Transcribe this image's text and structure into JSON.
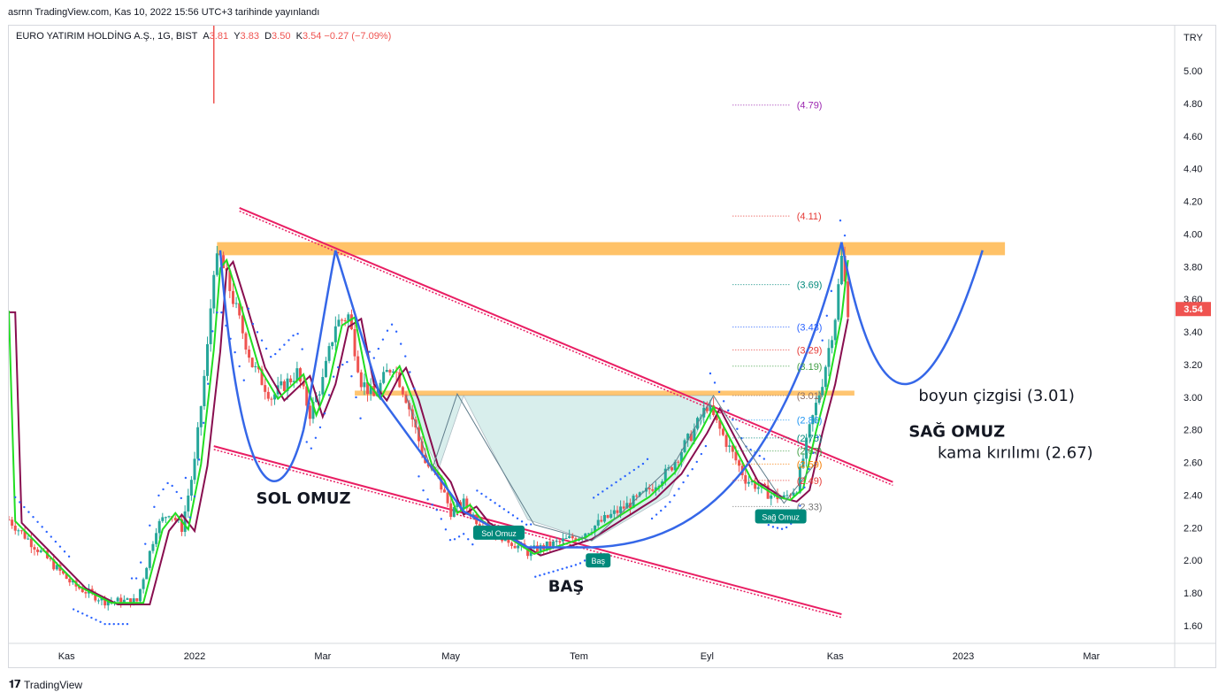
{
  "publish_line": "asrnn TradingView.com, Kas 10, 2022 15:56 UTC+3 tarihinde yayınlandı",
  "symbol": "EURO YATIRIM HOLDİNG A.Ş., 1G, BIST",
  "ohlc": {
    "open_label": "A",
    "open": "3.81",
    "high_label": "Y",
    "high": "3.83",
    "low_label": "D",
    "low": "3.50",
    "close_label": "K",
    "close": "3.54",
    "change": "−0.27 (−7.09%)"
  },
  "currency": "TRY",
  "last_price": "3.54",
  "brand": "TradingView",
  "colors": {
    "up": "#26a69a",
    "down": "#ef5350",
    "pattern_curve": "#3567e8",
    "channel": "#e91e63",
    "zone": "#ffb74d",
    "ema_fast": "#22dd22",
    "ema_slow": "#880e4f",
    "sar": "#2962ff",
    "fill": "#b2dfdb"
  },
  "chart_data": {
    "type": "line",
    "title": "",
    "xlabel": "",
    "ylabel": "",
    "ylim": [
      1.5,
      5.2
    ],
    "y_ticks": [
      "5.00",
      "4.80",
      "4.60",
      "4.40",
      "4.20",
      "4.00",
      "3.80",
      "3.60",
      "3.40",
      "3.20",
      "3.00",
      "2.80",
      "2.60",
      "2.40",
      "2.20",
      "2.00",
      "1.80",
      "1.60"
    ],
    "x_ticks": [
      {
        "label": "Kas",
        "t": 4
      },
      {
        "label": "2022",
        "t": 24
      },
      {
        "label": "Mar",
        "t": 44
      },
      {
        "label": "May",
        "t": 64
      },
      {
        "label": "Tem",
        "t": 84
      },
      {
        "label": "Eyl",
        "t": 104
      },
      {
        "label": "Kas",
        "t": 124
      },
      {
        "label": "2023",
        "t": 144
      },
      {
        "label": "Mar",
        "t": 164
      }
    ],
    "x_range": [
      -5,
      177
    ],
    "series": [
      {
        "name": "",
        "values_t": [
          -5,
          0,
          5,
          10,
          15,
          18,
          20,
          22,
          24,
          26,
          27,
          28,
          30,
          33,
          36,
          40,
          42,
          44,
          46,
          48,
          50,
          52,
          54,
          55,
          57,
          60,
          62,
          64,
          66,
          68,
          70,
          72,
          76,
          80,
          84,
          86,
          88,
          90,
          94,
          98,
          102,
          104,
          106,
          108,
          110,
          112,
          114,
          116,
          118,
          120,
          122,
          124,
          125,
          126
        ],
        "values": [
          2.25,
          2.05,
          1.85,
          1.75,
          1.75,
          2.2,
          2.3,
          2.2,
          2.6,
          3.3,
          3.8,
          3.85,
          3.6,
          3.2,
          3.0,
          3.15,
          2.9,
          3.1,
          3.45,
          3.5,
          3.1,
          3.0,
          3.15,
          3.2,
          3.0,
          2.6,
          2.5,
          2.3,
          2.35,
          2.25,
          2.2,
          2.15,
          2.05,
          2.1,
          2.15,
          2.2,
          2.25,
          2.3,
          2.4,
          2.55,
          2.8,
          2.95,
          2.8,
          2.65,
          2.5,
          2.45,
          2.4,
          2.38,
          2.45,
          2.8,
          3.1,
          3.5,
          3.85,
          3.54
        ]
      }
    ],
    "levels": [
      {
        "label": "(4.79)",
        "value": 4.79,
        "color": "#9c27b0"
      },
      {
        "label": "(4.11)",
        "value": 4.11,
        "color": "#e53935"
      },
      {
        "label": "(3.69)",
        "value": 3.69,
        "color": "#00897b"
      },
      {
        "label": "(3.43)",
        "value": 3.43,
        "color": "#2962ff"
      },
      {
        "label": "(3.29)",
        "value": 3.29,
        "color": "#e53935"
      },
      {
        "label": "(3.19)",
        "value": 3.19,
        "color": "#43a047"
      },
      {
        "label": "(3.01)",
        "value": 3.01,
        "color": "#8d6e63"
      },
      {
        "label": "(2.86)",
        "value": 2.86,
        "color": "#2196f3"
      },
      {
        "label": "(2.75)",
        "value": 2.75,
        "color": "#00897b"
      },
      {
        "label": "(2.67)",
        "value": 2.67,
        "color": "#43a047"
      },
      {
        "label": "(2.59)",
        "value": 2.59,
        "color": "#f57c00"
      },
      {
        "label": "(2.49)",
        "value": 2.49,
        "color": "#e53935"
      },
      {
        "label": "(2.33)",
        "value": 2.33,
        "color": "#757575"
      }
    ],
    "annotations": [
      {
        "text": "SOL OMUZ",
        "t": 41,
        "value": 2.38
      },
      {
        "text": "BAŞ",
        "t": 82,
        "value": 1.84
      },
      {
        "text": "SAĞ OMUZ",
        "t": 143,
        "value": 2.79
      },
      {
        "text": "boyun çizgisi (3.01)",
        "t": 137,
        "value": 3.01
      },
      {
        "text": "kama kırılımı (2.67)",
        "t": 140,
        "value": 2.66
      }
    ],
    "badges": [
      {
        "text": "Sol Omuz",
        "t": 71.5,
        "value": 2.17
      },
      {
        "text": "Baş",
        "t": 87,
        "value": 2.0
      },
      {
        "text": "Sağ Omuz",
        "t": 115.5,
        "value": 2.27
      }
    ]
  }
}
